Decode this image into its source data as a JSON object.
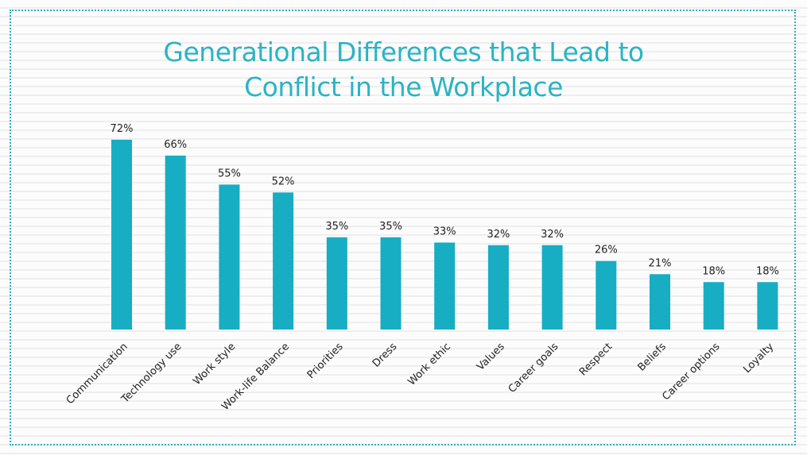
{
  "chart_data": {
    "type": "bar",
    "title": "Generational Differences that Lead to Conflict in the Workplace",
    "categories": [
      "Communication",
      "Technology use",
      "Work style",
      "Work-life Balance",
      "Priorities",
      "Dress",
      "Work ethic",
      "Values",
      "Career goals",
      "Respect",
      "Beliefs",
      "Career options",
      "Loyalty"
    ],
    "values": [
      72,
      66,
      55,
      52,
      35,
      35,
      33,
      32,
      32,
      26,
      21,
      18,
      18
    ],
    "value_labels": [
      "72%",
      "66%",
      "55%",
      "52%",
      "35%",
      "35%",
      "33%",
      "32%",
      "32%",
      "26%",
      "21%",
      "18%",
      "18%"
    ],
    "color": "#17adc3"
  }
}
